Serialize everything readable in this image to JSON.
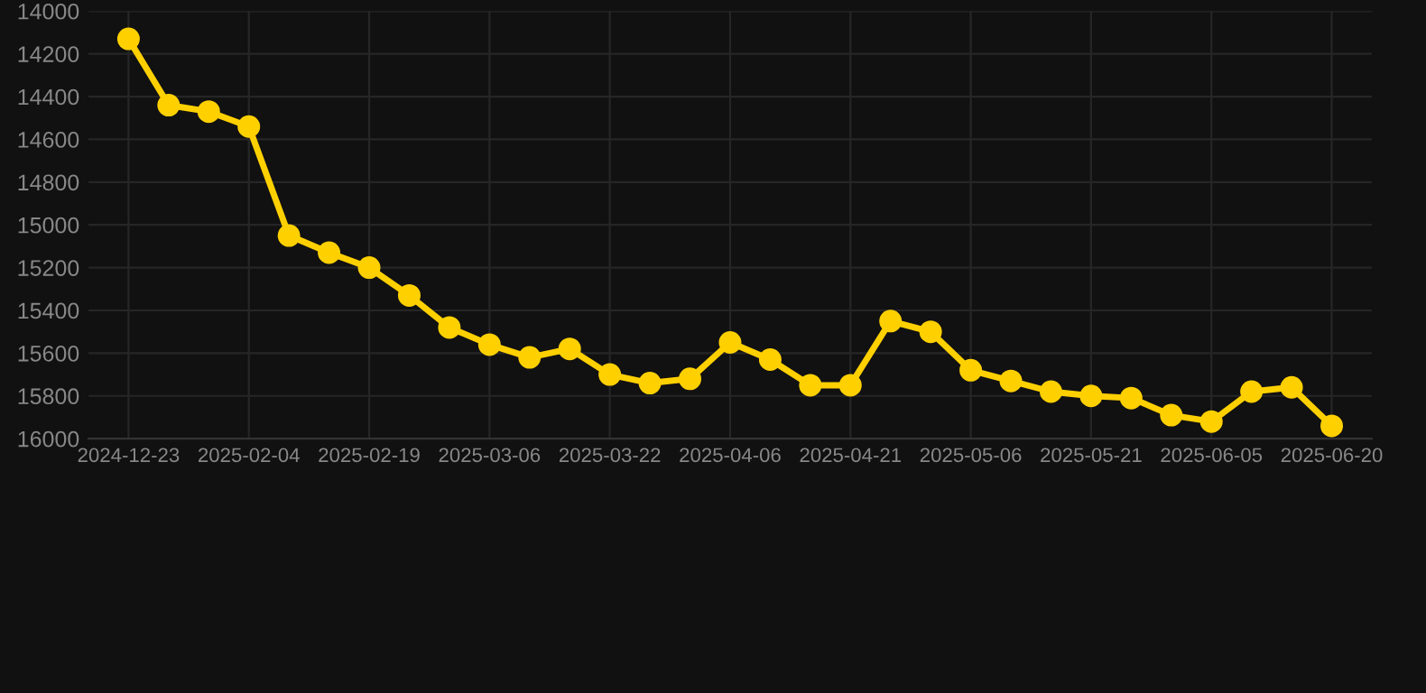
{
  "chart_data": {
    "type": "line",
    "categories": [
      "2024-12-23",
      null,
      null,
      "2025-02-04",
      null,
      null,
      "2025-02-19",
      null,
      null,
      "2025-03-06",
      null,
      null,
      "2025-03-22",
      null,
      null,
      "2025-04-06",
      null,
      null,
      "2025-04-21",
      null,
      null,
      "2025-05-06",
      null,
      null,
      "2025-05-21",
      null,
      null,
      "2025-06-05",
      null,
      null,
      "2025-06-20"
    ],
    "series": [
      {
        "color": "#ffd000",
        "values": [
          14130,
          14440,
          14470,
          14540,
          15050,
          15130,
          15200,
          15330,
          15480,
          15560,
          15620,
          15580,
          15700,
          15740,
          15720,
          15550,
          15630,
          15750,
          15750,
          15450,
          15500,
          15680,
          15730,
          15780,
          15800,
          15810,
          15890,
          15920,
          15780,
          15760,
          15940
        ]
      }
    ],
    "ylim": [
      16000,
      14000
    ],
    "yticks": [
      14000,
      14200,
      14400,
      14600,
      14800,
      15000,
      15200,
      15400,
      15600,
      15800,
      16000
    ],
    "grid": true,
    "marker": "circle",
    "line_style": "solid"
  }
}
